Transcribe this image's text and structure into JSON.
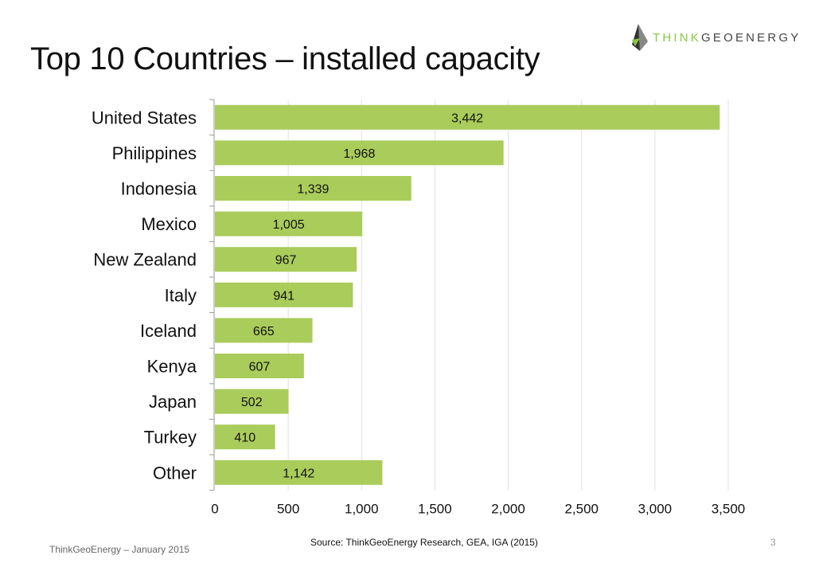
{
  "title": "Top 10 Countries – installed capacity",
  "logo": {
    "text_part1": "THINK",
    "text_part2": "GEOENERGY",
    "accent_color": "#8cc63f"
  },
  "source": "Source: ThinkGeoEnergy Research, GEA, IGA (2015)",
  "footer": "ThinkGeoEnergy – January 2015",
  "page_number": "3",
  "chart_data": {
    "type": "bar",
    "orientation": "horizontal",
    "categories": [
      "United States",
      "Philippines",
      "Indonesia",
      "Mexico",
      "New Zealand",
      "Italy",
      "Iceland",
      "Kenya",
      "Japan",
      "Turkey",
      "Other"
    ],
    "values": [
      3442,
      1968,
      1339,
      1005,
      967,
      941,
      665,
      607,
      502,
      410,
      1142
    ],
    "data_labels": [
      "3,442",
      "1,968",
      "1,339",
      "1,005",
      "967",
      "941",
      "665",
      "607",
      "502",
      "410",
      "1,142"
    ],
    "xlim": [
      0,
      3500
    ],
    "x_ticks": [
      0,
      500,
      1000,
      1500,
      2000,
      2500,
      3000,
      3500
    ],
    "x_tick_labels": [
      "0",
      "500",
      "1,000",
      "1,500",
      "2,000",
      "2,500",
      "3,000",
      "3,500"
    ],
    "grid": true,
    "bar_color": "#a9cc5b",
    "grid_color": "#e2e2e2"
  }
}
